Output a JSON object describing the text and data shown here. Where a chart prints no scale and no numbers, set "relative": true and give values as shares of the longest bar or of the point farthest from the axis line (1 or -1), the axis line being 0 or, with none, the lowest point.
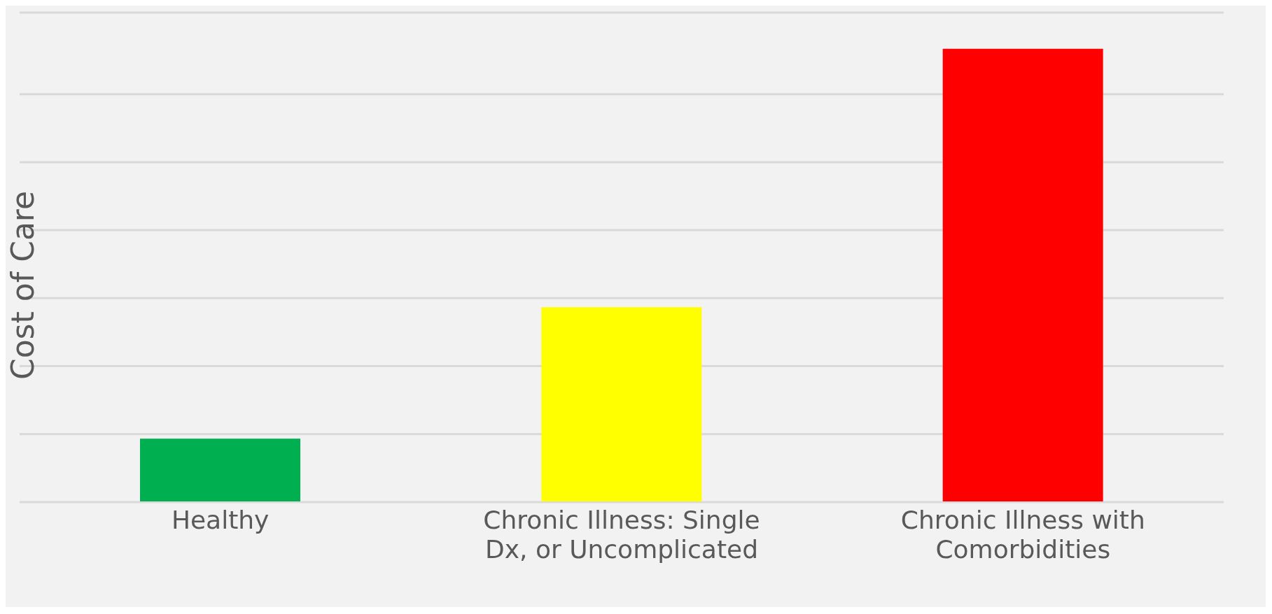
{
  "chart_data": {
    "type": "bar",
    "relative": true,
    "ylabel": "Cost of Care",
    "categories": [
      "Healthy",
      "Chronic Illness: Single Dx, or Uncomplicated",
      "Chronic Illness with Comorbidities"
    ],
    "values": [
      0.14,
      0.43,
      1
    ],
    "colors": [
      "#00b050",
      "#ffff00",
      "#ff0000"
    ],
    "grid": "y"
  }
}
